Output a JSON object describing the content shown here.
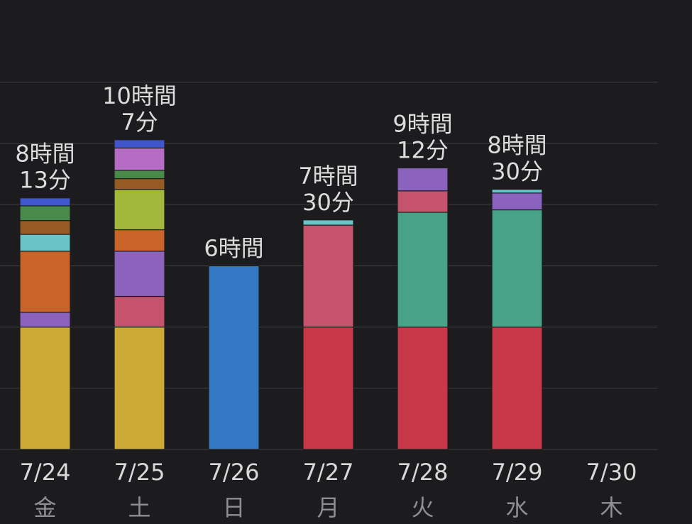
{
  "colors": {
    "background": "#1c1c1e",
    "grid": "#3a3a3c",
    "total_label": "#dcdcdc",
    "date_label": "#d8d8d8",
    "weekday_label": "#8e8e93"
  },
  "chart_data": {
    "type": "bar",
    "stacked": true,
    "unit": "hours",
    "ylim": [
      0,
      12
    ],
    "grid_step": 2,
    "grid": true,
    "legend": "none",
    "days": [
      {
        "date": "7/24",
        "weekday": "金",
        "total": [
          "8時間",
          "13分"
        ],
        "total_hours": 8.22,
        "segments": [
          {
            "color": "#ccaa35",
            "hours": 4.0
          },
          {
            "color": "#8b62bd",
            "hours": 0.48
          },
          {
            "color": "#c8642a",
            "hours": 2.0
          },
          {
            "color": "#69c3c7",
            "hours": 0.55
          },
          {
            "color": "#955b22",
            "hours": 0.45
          },
          {
            "color": "#49894a",
            "hours": 0.48
          },
          {
            "color": "#3f56cc",
            "hours": 0.26
          }
        ]
      },
      {
        "date": "7/25",
        "weekday": "土",
        "total": [
          "10時間",
          "7分"
        ],
        "total_hours": 10.12,
        "segments": [
          {
            "color": "#ccaa35",
            "hours": 4.0
          },
          {
            "color": "#c6536e",
            "hours": 1.0
          },
          {
            "color": "#8b62bd",
            "hours": 1.48
          },
          {
            "color": "#c8642a",
            "hours": 0.7
          },
          {
            "color": "#a2b83c",
            "hours": 1.32
          },
          {
            "color": "#955b22",
            "hours": 0.35
          },
          {
            "color": "#49894a",
            "hours": 0.27
          },
          {
            "color": "#b66cc5",
            "hours": 0.73
          },
          {
            "color": "#3f56cc",
            "hours": 0.27
          }
        ]
      },
      {
        "date": "7/26",
        "weekday": "日",
        "total": [
          "6時間"
        ],
        "total_hours": 6.0,
        "segments": [
          {
            "color": "#3579c4",
            "hours": 6.0
          }
        ]
      },
      {
        "date": "7/27",
        "weekday": "月",
        "total": [
          "7時間",
          "30分"
        ],
        "total_hours": 7.5,
        "segments": [
          {
            "color": "#c83848",
            "hours": 4.0
          },
          {
            "color": "#c6536e",
            "hours": 3.33
          },
          {
            "color": "#69c3c7",
            "hours": 0.17
          }
        ]
      },
      {
        "date": "7/28",
        "weekday": "火",
        "total": [
          "9時間",
          "12分"
        ],
        "total_hours": 9.2,
        "segments": [
          {
            "color": "#c83848",
            "hours": 4.0
          },
          {
            "color": "#48a285",
            "hours": 3.75
          },
          {
            "color": "#c6536e",
            "hours": 0.7
          },
          {
            "color": "#8b62bd",
            "hours": 0.75
          }
        ]
      },
      {
        "date": "7/29",
        "weekday": "水",
        "total": [
          "8時間",
          "30分"
        ],
        "total_hours": 8.5,
        "segments": [
          {
            "color": "#c83848",
            "hours": 4.0
          },
          {
            "color": "#48a285",
            "hours": 3.83
          },
          {
            "color": "#8b62bd",
            "hours": 0.55
          },
          {
            "color": "#69c3c7",
            "hours": 0.12
          }
        ]
      },
      {
        "date": "7/30",
        "weekday": "木",
        "total": [],
        "total_hours": 0,
        "segments": []
      }
    ]
  }
}
